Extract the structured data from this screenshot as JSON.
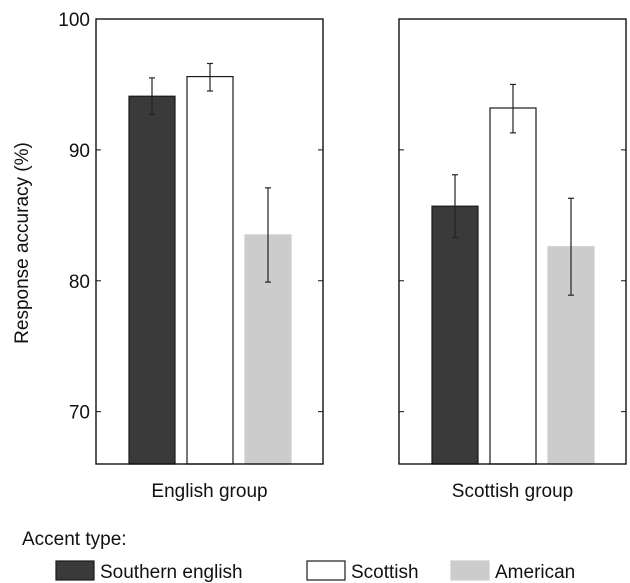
{
  "chart_data": {
    "type": "bar",
    "ylabel": "Response accuracy (%)",
    "ylim": [
      66,
      100
    ],
    "yticks": [
      70,
      80,
      90,
      100
    ],
    "grid": false,
    "panels": [
      {
        "label": "English group",
        "series": [
          {
            "name": "Southern english",
            "value": 94.1,
            "err_low": 92.7,
            "err_high": 95.5
          },
          {
            "name": "Scottish",
            "value": 95.6,
            "err_low": 94.5,
            "err_high": 96.6
          },
          {
            "name": "American",
            "value": 83.5,
            "err_low": 79.9,
            "err_high": 87.1
          }
        ]
      },
      {
        "label": "Scottish group",
        "series": [
          {
            "name": "Southern english",
            "value": 85.7,
            "err_low": 83.3,
            "err_high": 88.1
          },
          {
            "name": "Scottish",
            "value": 93.2,
            "err_low": 91.3,
            "err_high": 95.0
          },
          {
            "name": "American",
            "value": 82.6,
            "err_low": 78.9,
            "err_high": 86.3
          }
        ]
      }
    ],
    "legend": {
      "title": "Accent type:",
      "position": "bottom",
      "entries": [
        {
          "name": "Southern english",
          "color": "#3a3a3a",
          "stroke": "#1a1a1a"
        },
        {
          "name": "Scottish",
          "color": "#ffffff",
          "stroke": "#1a1a1a"
        },
        {
          "name": "American",
          "color": "#cccccc",
          "stroke": "#cccccc"
        }
      ]
    }
  }
}
